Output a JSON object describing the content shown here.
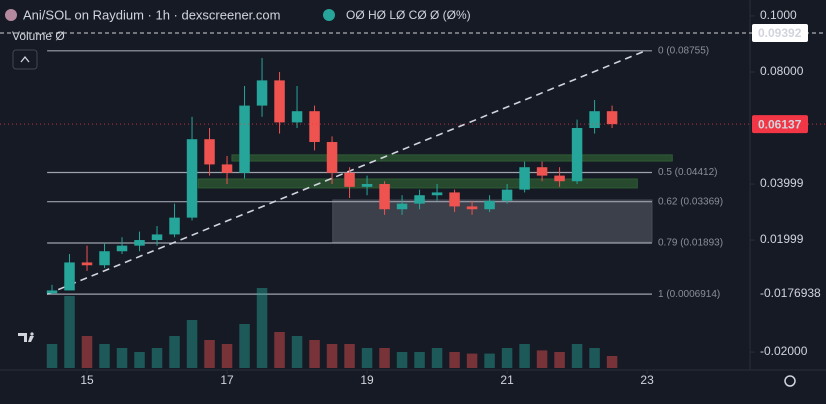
{
  "header": {
    "title": "Ani/SOL on Raydium · 1h · dexscreener.com",
    "ohlc": "OØ HØ LØ CØ Ø (Ø%)",
    "volume_label": "Volume Ø",
    "axis_note": "-0.0176938"
  },
  "chart_data": {
    "type": "candlestick",
    "x": [
      14.5,
      14.75,
      15,
      15.25,
      15.5,
      15.75,
      16,
      16.25,
      16.5,
      16.75,
      17,
      17.25,
      17.5,
      17.75,
      18,
      18.25,
      18.5,
      18.75,
      19,
      19.25,
      19.5,
      19.75,
      20,
      20.25,
      20.5,
      20.75,
      21,
      21.25,
      21.5,
      21.75,
      22,
      22.25,
      22.5
    ],
    "open": [
      0.001,
      0.002,
      0.012,
      0.011,
      0.016,
      0.018,
      0.02,
      0.022,
      0.028,
      0.056,
      0.047,
      0.044,
      0.068,
      0.077,
      0.062,
      0.066,
      0.055,
      0.044,
      0.039,
      0.04,
      0.031,
      0.033,
      0.036,
      0.037,
      0.032,
      0.031,
      0.034,
      0.038,
      0.046,
      0.043,
      0.041,
      0.06,
      0.066
    ],
    "high": [
      0.004,
      0.015,
      0.018,
      0.019,
      0.021,
      0.023,
      0.025,
      0.033,
      0.064,
      0.06,
      0.05,
      0.075,
      0.085,
      0.08,
      0.075,
      0.068,
      0.057,
      0.046,
      0.043,
      0.041,
      0.036,
      0.038,
      0.04,
      0.038,
      0.034,
      0.036,
      0.04,
      0.048,
      0.048,
      0.046,
      0.063,
      0.07,
      0.068
    ],
    "low": [
      0.0007,
      0.002,
      0.009,
      0.01,
      0.015,
      0.016,
      0.018,
      0.021,
      0.027,
      0.043,
      0.04,
      0.042,
      0.064,
      0.058,
      0.06,
      0.052,
      0.04,
      0.035,
      0.036,
      0.029,
      0.029,
      0.031,
      0.034,
      0.03,
      0.029,
      0.03,
      0.033,
      0.037,
      0.041,
      0.039,
      0.04,
      0.058,
      0.06
    ],
    "close": [
      0.002,
      0.012,
      0.011,
      0.016,
      0.018,
      0.02,
      0.022,
      0.028,
      0.056,
      0.047,
      0.044,
      0.068,
      0.077,
      0.062,
      0.066,
      0.055,
      0.044,
      0.039,
      0.04,
      0.031,
      0.033,
      0.036,
      0.037,
      0.032,
      0.031,
      0.034,
      0.038,
      0.046,
      0.043,
      0.041,
      0.06,
      0.066,
      0.06137
    ],
    "volume": [
      30,
      90,
      40,
      30,
      25,
      20,
      25,
      40,
      60,
      35,
      30,
      55,
      100,
      45,
      40,
      35,
      30,
      30,
      25,
      25,
      20,
      20,
      25,
      20,
      18,
      18,
      25,
      30,
      22,
      20,
      30,
      25,
      15
    ],
    "volume_lim": [
      0,
      100
    ],
    "xlim": [
      13.757,
      24.47
    ],
    "xticks": [
      15,
      17,
      19,
      21,
      23
    ],
    "ylim": [
      -0.0264,
      0.1057
    ],
    "yticks": [
      {
        "value": 0.1,
        "label": "0.1000"
      },
      {
        "value": 0.08,
        "label": "0.08000"
      },
      0.03999,
      0.01999,
      {
        "value": -0.02,
        "label": "-0.02000"
      }
    ],
    "up_color": "#26a69a",
    "down_color": "#ef5350",
    "fib_levels": [
      {
        "value": 0.08755,
        "label": "0 (0.08755)"
      },
      {
        "value": 0.04412,
        "label": "0.5 (0.04412)"
      },
      {
        "value": 0.03369,
        "label": "0.62 (0.03369)"
      },
      {
        "value": 0.01893,
        "label": "0.79 (0.01893)"
      },
      {
        "value": 0.0006914,
        "label": "1 (0.0006914)"
      }
    ],
    "fib_x": [
      14.43,
      23.07
    ],
    "zones": [
      {
        "x": [
          17.07,
          23.36
        ],
        "y": [
          0.0482,
          0.0504
        ],
        "color": "#2e5b33"
      },
      {
        "x": [
          16.59,
          22.86
        ],
        "y": [
          0.0386,
          0.0418
        ],
        "color": "#2e5b33"
      },
      {
        "x": [
          18.51,
          23.07
        ],
        "y": [
          0.0193,
          0.0343
        ],
        "color": "#4a4d58"
      }
    ],
    "trend_line": {
      "x": [
        14.43,
        22.97
      ],
      "y": [
        0.0007,
        0.0875
      ]
    },
    "price_tags": [
      {
        "value": 0.09392,
        "label": "0.09392",
        "color": "#ffffff",
        "text_color": "#131722",
        "dash": "4 3"
      },
      {
        "value": 0.06137,
        "label": "0.06137",
        "color": "#f23645",
        "text_color": "#ffffff",
        "dash": "1 3"
      }
    ]
  }
}
